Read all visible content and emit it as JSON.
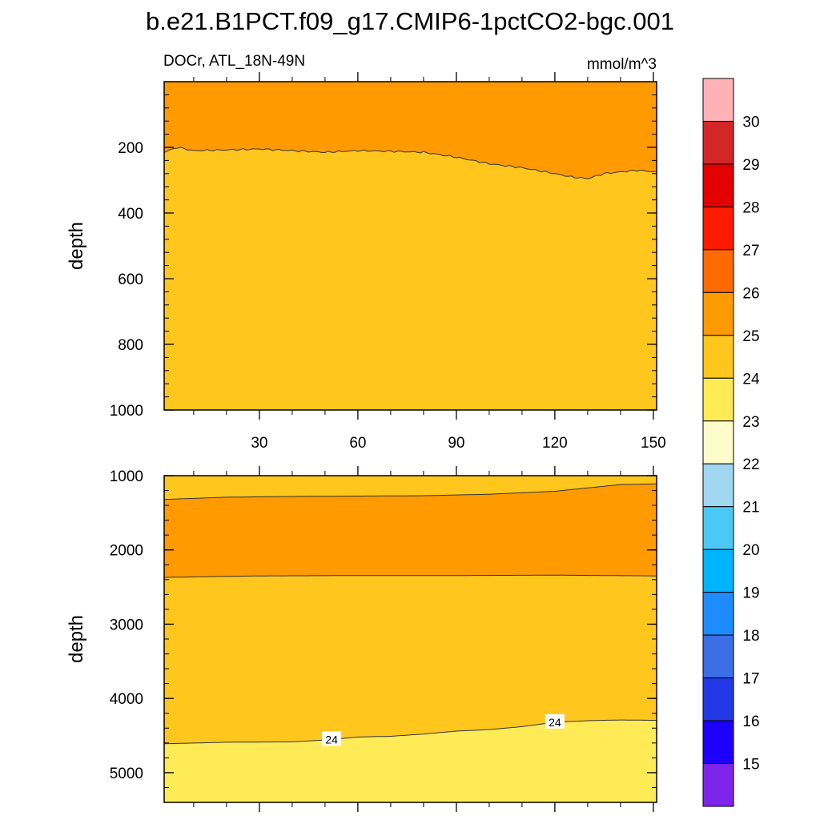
{
  "chart_data": {
    "type": "contour",
    "title": "b.e21.B1PCT.f09_g17.CMIP6-1pctCO2-bgc.001",
    "variable": "DOCr, ATL_18N-49N",
    "units": "mmol/m^3",
    "colorbar": {
      "levels": [
        "15",
        "16",
        "17",
        "18",
        "19",
        "20",
        "21",
        "22",
        "23",
        "24",
        "25",
        "26",
        "27",
        "28",
        "29",
        "30"
      ],
      "colors_top_to_bottom": [
        "#ffb2b6",
        "#d32626",
        "#e20000",
        "#ff1a00",
        "#ff6a00",
        "#ff9a00",
        "#ffc61e",
        "#ffeb55",
        "#fffccc",
        "#a0d6f0",
        "#4bc8f5",
        "#00b4ff",
        "#1e8cff",
        "#3c6ee6",
        "#2338e6",
        "#1e00ff",
        "#7d25ea"
      ]
    },
    "panels": [
      {
        "name": "upper",
        "ylabel": "depth",
        "ylim": [
          0,
          1000
        ],
        "y_ticks": [
          "200",
          "400",
          "600",
          "800",
          "1000"
        ],
        "xlim": [
          1,
          151
        ],
        "x_ticks": [
          "30",
          "60",
          "90",
          "120",
          "150"
        ],
        "regions": [
          {
            "range": "25-26",
            "color": "#ff9a00",
            "extent": "surface to ~200-300 m"
          },
          {
            "range": "24-25",
            "color": "#ffc61e",
            "extent": "~200-300 m to 1000 m"
          }
        ],
        "boundary_24_25_depth_m": {
          "x": [
            1,
            5,
            10,
            20,
            30,
            40,
            50,
            60,
            70,
            80,
            90,
            100,
            110,
            120,
            125,
            130,
            135,
            140,
            145,
            151
          ],
          "depth": [
            215,
            200,
            210,
            208,
            205,
            210,
            215,
            210,
            212,
            215,
            230,
            250,
            262,
            280,
            290,
            295,
            280,
            275,
            270,
            275
          ]
        }
      },
      {
        "name": "lower",
        "ylabel": "depth",
        "ylim": [
          1000,
          5400
        ],
        "y_ticks": [
          "1000",
          "2000",
          "3000",
          "4000",
          "5000"
        ],
        "xlim": [
          1,
          151
        ],
        "contour_labels": [
          "24",
          "24"
        ],
        "regions": [
          {
            "range": "24-25",
            "color": "#ffc61e",
            "extent": "1000 m to ~1100-1320 m"
          },
          {
            "range": "25-26",
            "color": "#ff9a00",
            "extent": "~1320 m to ~2350 m"
          },
          {
            "range": "24-25",
            "color": "#ffc61e",
            "extent": "~2350 m to ~4300-4600 m"
          },
          {
            "range": "23-24",
            "color": "#ffeb55",
            "extent": "~4300-4600 m to bottom"
          }
        ],
        "boundary_upper_m": {
          "x": [
            1,
            20,
            40,
            60,
            80,
            100,
            120,
            140,
            151
          ],
          "depth": [
            1320,
            1290,
            1280,
            1275,
            1270,
            1250,
            1210,
            1120,
            1110
          ]
        },
        "boundary_middle_m": {
          "x": [
            1,
            30,
            60,
            90,
            120,
            151
          ],
          "depth": [
            2370,
            2350,
            2345,
            2345,
            2340,
            2350
          ]
        },
        "boundary_24_m": {
          "x": [
            1,
            20,
            40,
            50,
            60,
            70,
            80,
            90,
            100,
            110,
            120,
            130,
            140,
            151
          ],
          "depth": [
            4610,
            4590,
            4585,
            4560,
            4520,
            4510,
            4480,
            4440,
            4420,
            4380,
            4320,
            4300,
            4290,
            4295
          ]
        },
        "label_positions_x": [
          52,
          120
        ]
      }
    ]
  }
}
